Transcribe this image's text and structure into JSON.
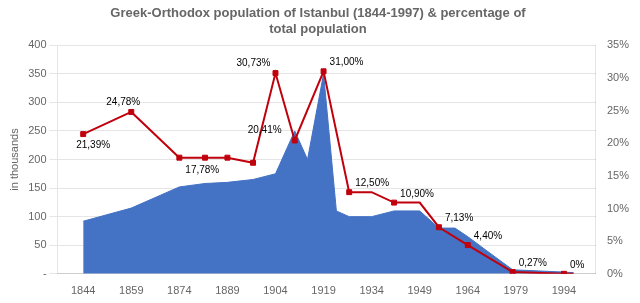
{
  "chart_data": {
    "type": "line",
    "title": "Greek-Orthodox population of Istanbul (1844-1997) & percentage of\ntotal population",
    "ylabel": "in thousands",
    "xlim": [
      1836,
      2004
    ],
    "xticks": [
      1844,
      1859,
      1874,
      1889,
      1904,
      1919,
      1934,
      1949,
      1964,
      1979,
      1994
    ],
    "ylim": [
      0,
      400
    ],
    "yticks": [
      {
        "value": 0,
        "label": "-"
      },
      50,
      100,
      150,
      200,
      250,
      300,
      350,
      400
    ],
    "y2lim": [
      0,
      35
    ],
    "y2ticks": [
      {
        "value": 0,
        "label": "0%"
      },
      {
        "value": 5,
        "label": "5%"
      },
      {
        "value": 10,
        "label": "10%"
      },
      {
        "value": 15,
        "label": "15%"
      },
      {
        "value": 20,
        "label": "20%"
      },
      {
        "value": 25,
        "label": "25%"
      },
      {
        "value": 30,
        "label": "30%"
      },
      {
        "value": 35,
        "label": "35%"
      }
    ],
    "grid": true,
    "series": [
      {
        "type": "area",
        "color": "#4472C4",
        "x": [
          1844,
          1859,
          1874,
          1882,
          1889,
          1897,
          1904,
          1910,
          1914,
          1919,
          1923,
          1927,
          1934,
          1941,
          1949,
          1955,
          1960,
          1964,
          1970,
          1978,
          1994,
          1997
        ],
        "values": [
          92,
          115,
          152,
          158,
          160,
          165,
          175,
          250,
          200,
          350,
          110,
          100,
          100,
          110,
          110,
          80,
          80,
          65,
          40,
          7,
          3,
          2
        ]
      },
      {
        "type": "line",
        "color": "#C0000C",
        "axis": "y2",
        "x": [
          1844,
          1859,
          1874,
          1882,
          1889,
          1897,
          1904,
          1910,
          1919,
          1927,
          1934,
          1941,
          1949,
          1955,
          1964,
          1978,
          1994,
          1997
        ],
        "values": [
          21.39,
          24.78,
          17.78,
          17.78,
          17.78,
          17.0,
          30.73,
          20.41,
          31.0,
          12.5,
          12.5,
          10.9,
          10.9,
          7.13,
          4.4,
          0.27,
          0.0,
          0.0
        ]
      },
      {
        "type": "scatter",
        "marker": "square",
        "color": "#C0000C",
        "axis": "y2",
        "x": [
          1844,
          1859,
          1874,
          1882,
          1889,
          1897,
          1904,
          1910,
          1919,
          1927,
          1941,
          1955,
          1964,
          1978,
          1994
        ],
        "values": [
          21.39,
          24.78,
          17.78,
          17.78,
          17.78,
          17.0,
          30.73,
          20.41,
          31.0,
          12.5,
          10.9,
          7.13,
          4.4,
          0.27,
          0.0
        ]
      }
    ],
    "annotations": [
      {
        "x": 1844,
        "y": 21.39,
        "text": "21,39%",
        "axis": "y2"
      },
      {
        "x": 1859,
        "y": 24.78,
        "text": "24,78%",
        "axis": "y2"
      },
      {
        "x": 1874,
        "y": 17.78,
        "text": "17,78%",
        "axis": "y2"
      },
      {
        "x": 1904,
        "y": 30.73,
        "text": "30,73%",
        "axis": "y2"
      },
      {
        "x": 1910,
        "y": 20.41,
        "text": "20,41%",
        "axis": "y2"
      },
      {
        "x": 1919,
        "y": 31.0,
        "text": "31,00%",
        "axis": "y2"
      },
      {
        "x": 1927,
        "y": 12.5,
        "text": "12,50%",
        "axis": "y2"
      },
      {
        "x": 1941,
        "y": 10.9,
        "text": "10,90%",
        "axis": "y2"
      },
      {
        "x": 1955,
        "y": 7.13,
        "text": "7,13%",
        "axis": "y2"
      },
      {
        "x": 1964,
        "y": 4.4,
        "text": "4,40%",
        "axis": "y2"
      },
      {
        "x": 1978,
        "y": 0.27,
        "text": "0,27%",
        "axis": "y2"
      },
      {
        "x": 1994,
        "y": 0.0,
        "text": "0%",
        "axis": "y2"
      }
    ]
  }
}
